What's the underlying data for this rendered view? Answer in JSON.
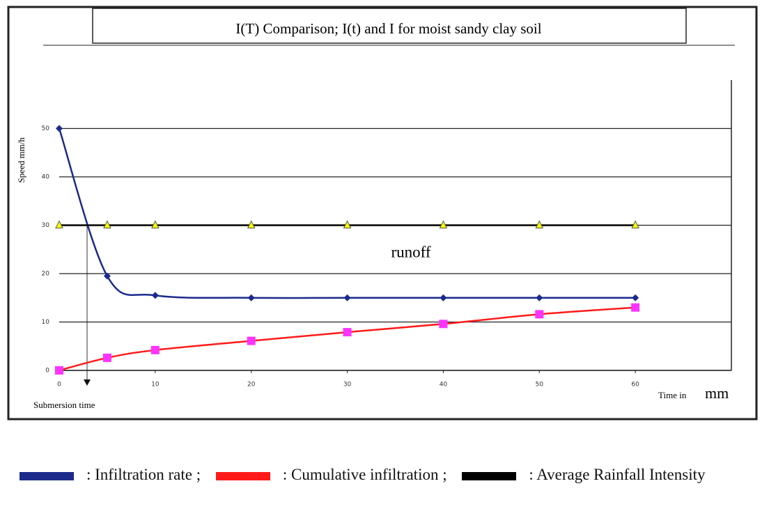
{
  "chart_data": {
    "type": "line",
    "title": "I(T) Comparison; I(t) and I for moist sandy clay soil",
    "y_label": "Speed mm/h",
    "x_label": "Time in",
    "x_label_unit": "mm",
    "annotations": [
      "runoff",
      "Submersion time"
    ],
    "legend_separator": ":",
    "legend_delimiter": ";",
    "x": [
      0,
      5,
      10,
      20,
      30,
      40,
      50,
      60
    ],
    "series": [
      {
        "name": "Infiltration rate",
        "color": "#1c2a8c",
        "marker": "diamond",
        "marker_color": "#1c2a8c",
        "values": [
          50,
          19.5,
          15.5,
          15,
          15,
          15,
          15,
          15
        ]
      },
      {
        "name": "Cumulative infiltration",
        "color": "#ff1a1a",
        "marker": "square",
        "marker_color": "#ff33ff",
        "values": [
          0,
          2.6,
          4.2,
          6.1,
          7.9,
          9.6,
          11.6,
          13
        ]
      },
      {
        "name": "Average Rainfall Intensity",
        "color": "#000000",
        "marker": "triangle",
        "marker_color": "#ffff00",
        "values": [
          30,
          30,
          30,
          30,
          30,
          30,
          30,
          30
        ]
      }
    ],
    "xlim": [
      0,
      70
    ],
    "xticks": [
      0,
      10,
      20,
      30,
      40,
      50,
      60
    ],
    "ylim": [
      0,
      60
    ],
    "yticks": [
      0,
      10,
      20,
      30,
      40,
      50
    ],
    "grid": true
  }
}
